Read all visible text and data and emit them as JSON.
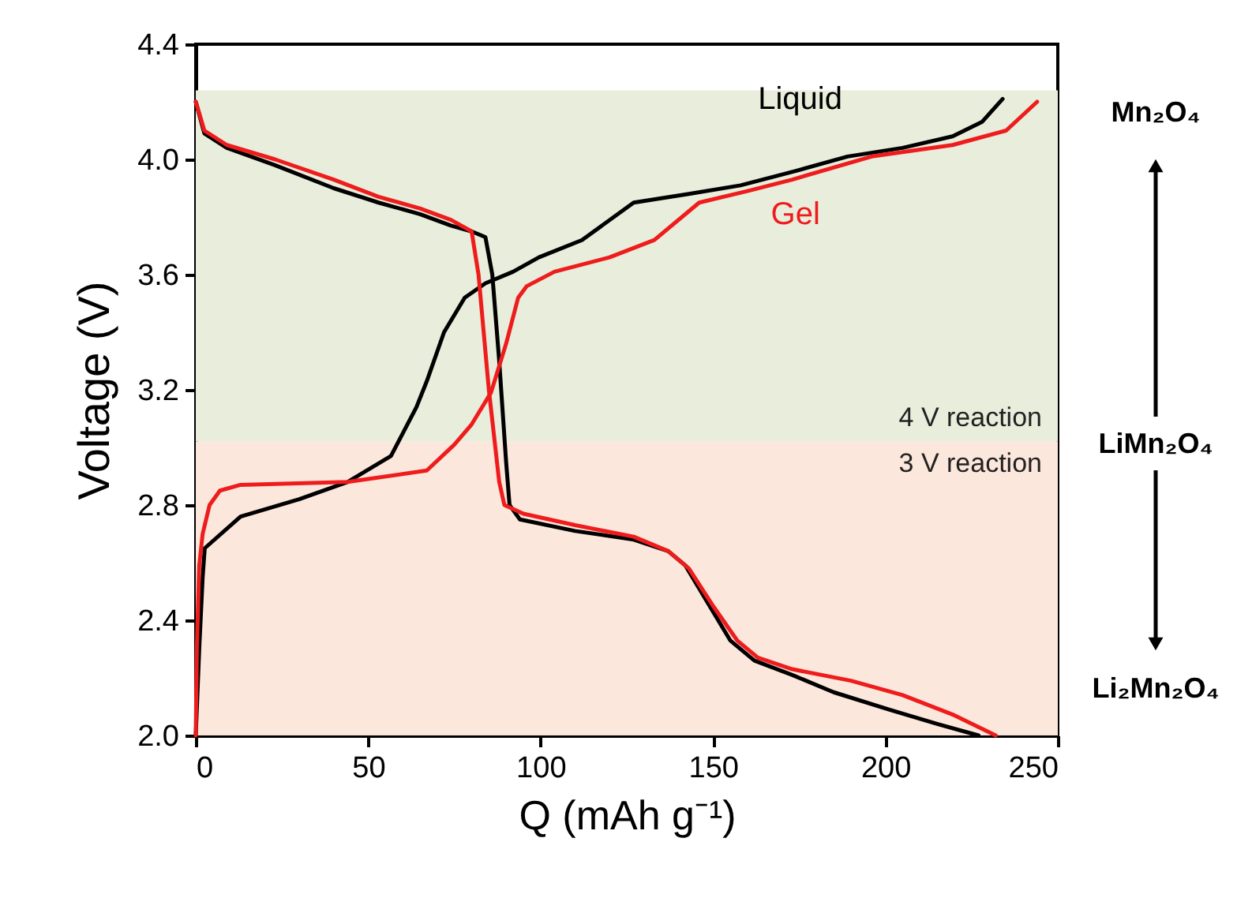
{
  "chart_data": {
    "type": "line",
    "xlabel": "Q (mAh g⁻¹)",
    "ylabel": "Voltage (V)",
    "xlim": [
      0,
      250
    ],
    "xticks": [
      0,
      50,
      100,
      150,
      200,
      250
    ],
    "ylim": [
      2.0,
      4.4
    ],
    "yticks": [
      {
        "value": 2.0,
        "label": "2.0"
      },
      2.4,
      2.8,
      3.2,
      3.6,
      {
        "value": 4.0,
        "label": "4.0"
      },
      4.4
    ],
    "grid": false,
    "line_style": "solid",
    "marker": "none",
    "bands": [
      {
        "axis": "y",
        "from": 3.02,
        "to": 4.24,
        "label": "4 V reaction",
        "color": "#e9eddc"
      },
      {
        "axis": "y",
        "from": 2.0,
        "to": 3.02,
        "label": "3 V reaction",
        "color": "#fce7dc"
      }
    ],
    "series": [
      {
        "name": "Liquid",
        "color": "#000000",
        "x": [
          0,
          1,
          2,
          2.6,
          13,
          30,
          44,
          56.6,
          64,
          67,
          72,
          78,
          84,
          92,
          99.5,
          112,
          127,
          143,
          158,
          174,
          189,
          205,
          219.5,
          228,
          234
        ],
        "values": [
          2.0,
          2.3,
          2.55,
          2.65,
          2.76,
          2.82,
          2.88,
          2.97,
          3.14,
          3.23,
          3.4,
          3.52,
          3.57,
          3.61,
          3.66,
          3.72,
          3.85,
          3.88,
          3.91,
          3.96,
          4.01,
          4.04,
          4.08,
          4.13,
          4.21
        ]
      },
      {
        "color": "#000000",
        "x": [
          0,
          2.5,
          9,
          23,
          40,
          53,
          65,
          74,
          80,
          84,
          86,
          88,
          90,
          91,
          94,
          110,
          127,
          137,
          142,
          148,
          155,
          162,
          173,
          185,
          201,
          215,
          227
        ],
        "values": [
          4.2,
          4.09,
          4.04,
          3.98,
          3.9,
          3.85,
          3.81,
          3.77,
          3.75,
          3.73,
          3.6,
          3.3,
          2.95,
          2.8,
          2.75,
          2.71,
          2.68,
          2.64,
          2.59,
          2.47,
          2.33,
          2.26,
          2.21,
          2.15,
          2.09,
          2.04,
          2.0
        ]
      },
      {
        "name": "Gel",
        "color": "#ee1c1c",
        "x": [
          0,
          0.3,
          1,
          2,
          4,
          7,
          13,
          44,
          67,
          75,
          80,
          85.6,
          90,
          93.5,
          96,
          104,
          120,
          133,
          146,
          160,
          173,
          196,
          219.5,
          235,
          244
        ],
        "values": [
          2.0,
          2.3,
          2.59,
          2.7,
          2.8,
          2.85,
          2.87,
          2.88,
          2.92,
          3.01,
          3.08,
          3.19,
          3.36,
          3.52,
          3.56,
          3.61,
          3.66,
          3.72,
          3.85,
          3.89,
          3.93,
          4.01,
          4.05,
          4.1,
          4.2
        ]
      },
      {
        "color": "#ee1c1c",
        "x": [
          0,
          2.5,
          9,
          23,
          40,
          53,
          65,
          74,
          80,
          82,
          85,
          88,
          89.5,
          95,
          110,
          127,
          137,
          143,
          150,
          157,
          163,
          173,
          190,
          205,
          220,
          232
        ],
        "values": [
          4.2,
          4.1,
          4.05,
          4.0,
          3.93,
          3.87,
          3.83,
          3.79,
          3.75,
          3.6,
          3.2,
          2.88,
          2.8,
          2.77,
          2.73,
          2.69,
          2.64,
          2.58,
          2.45,
          2.33,
          2.27,
          2.23,
          2.19,
          2.14,
          2.07,
          2.0
        ]
      }
    ],
    "annotations": [
      "Mn₂O₄",
      "LiMn₂O₄",
      "Li₂Mn₂O₄"
    ]
  }
}
